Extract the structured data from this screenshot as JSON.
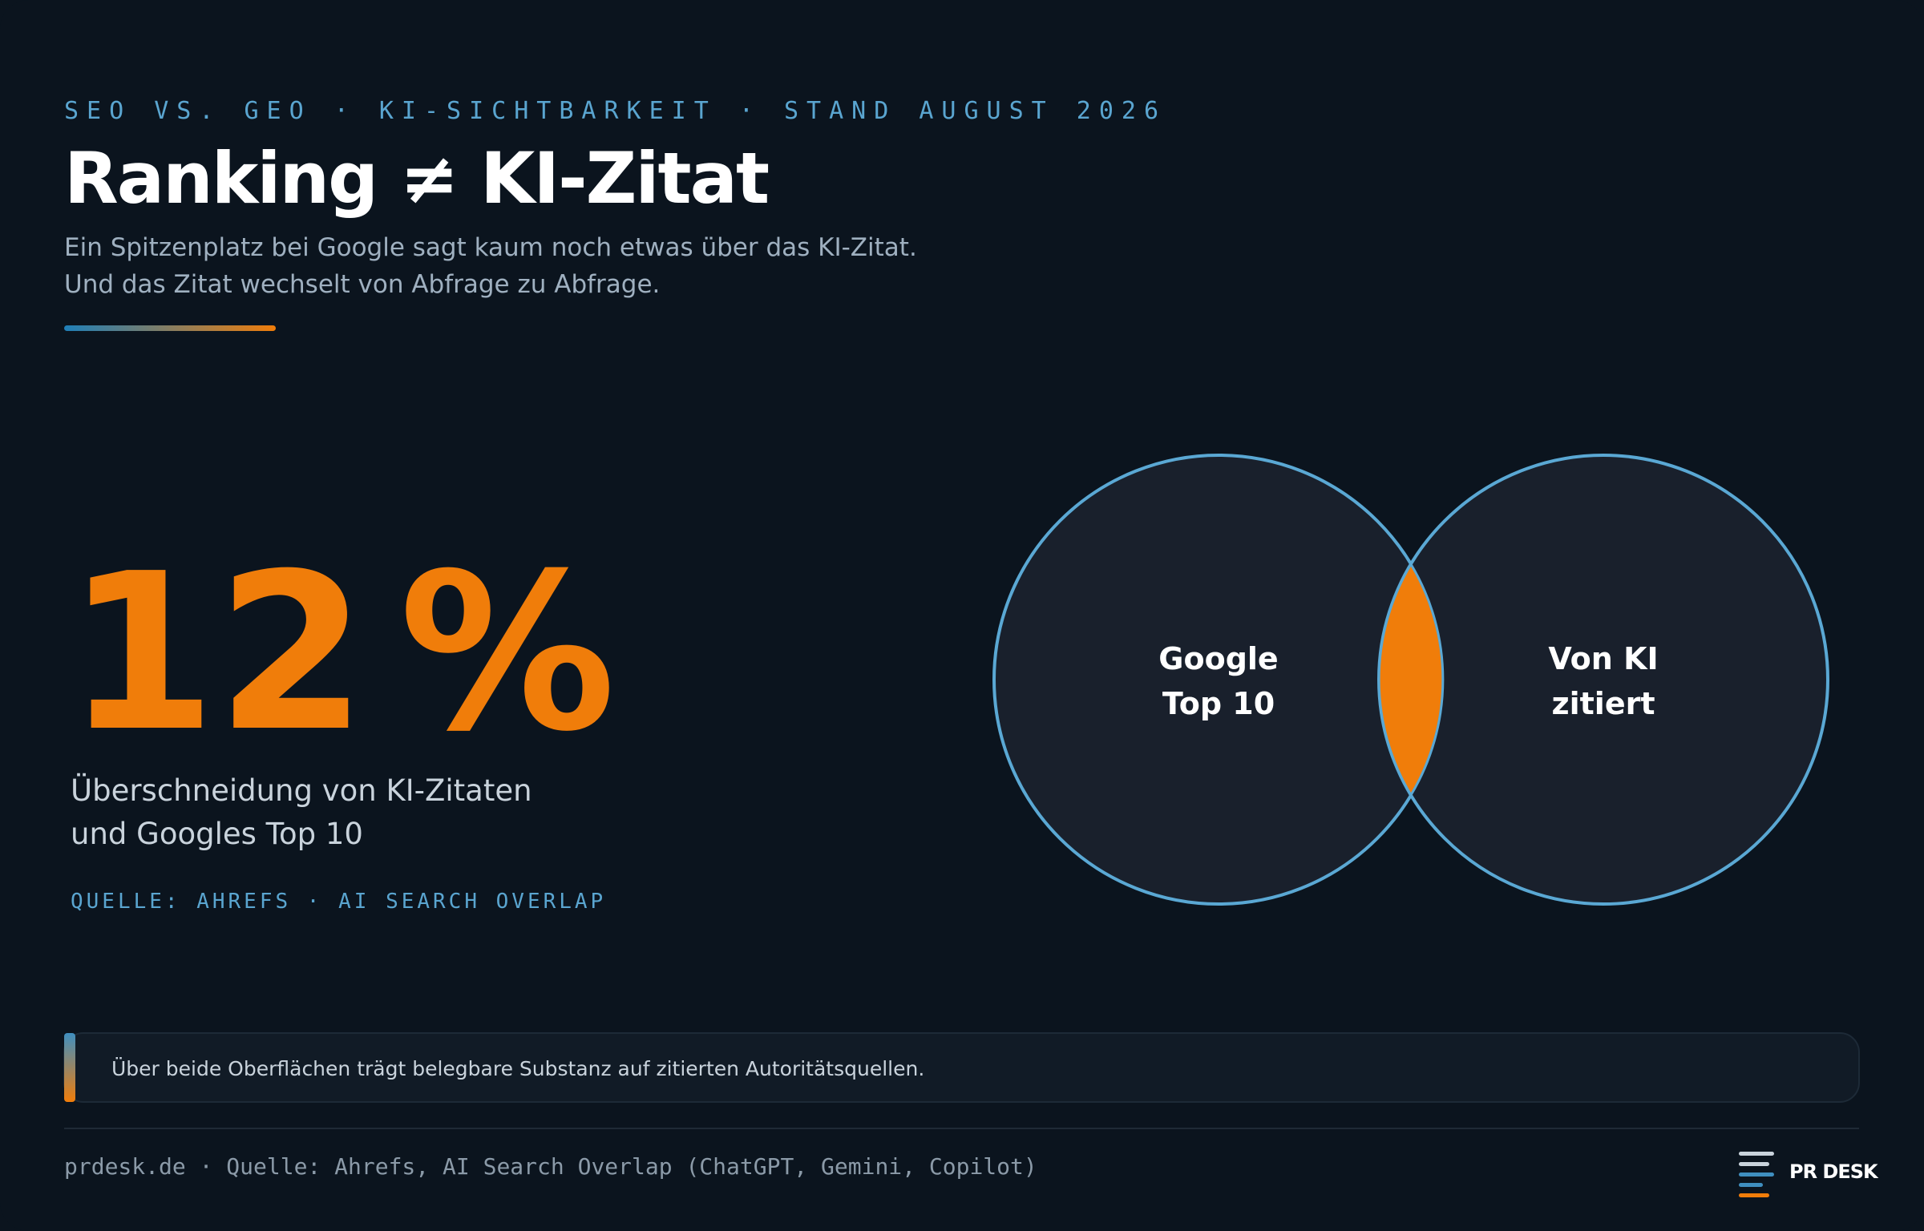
{
  "header": {
    "kicker": "SEO VS. GEO · KI-SICHTBARKEIT · STAND AUGUST 2026",
    "title": "Ranking ≠ KI-Zitat",
    "subtitle": [
      "Ein Spitzenplatz bei Google sagt kaum noch etwas über das KI-Zitat.",
      "Und das Zitat wechselt von Abfrage zu Abfrage."
    ]
  },
  "stat": {
    "value": "12",
    "unit": "%",
    "caption": [
      "Überschneidung von KI-Zitaten",
      "und Googles Top 10"
    ],
    "source": "QUELLE: AHREFS · AI SEARCH OVERLAP"
  },
  "venn": {
    "left": [
      "Google",
      "Top 10"
    ],
    "right": [
      "Von KI",
      "zitiert"
    ]
  },
  "callout": "Über beide Oberflächen trägt belegbare Substanz auf zitierten Autoritätsquellen.",
  "footer": {
    "text": "prdesk.de · Quelle: Ahrefs, AI Search Overlap (ChatGPT, Gemini, Copilot)",
    "logo": "PR DESK"
  }
}
